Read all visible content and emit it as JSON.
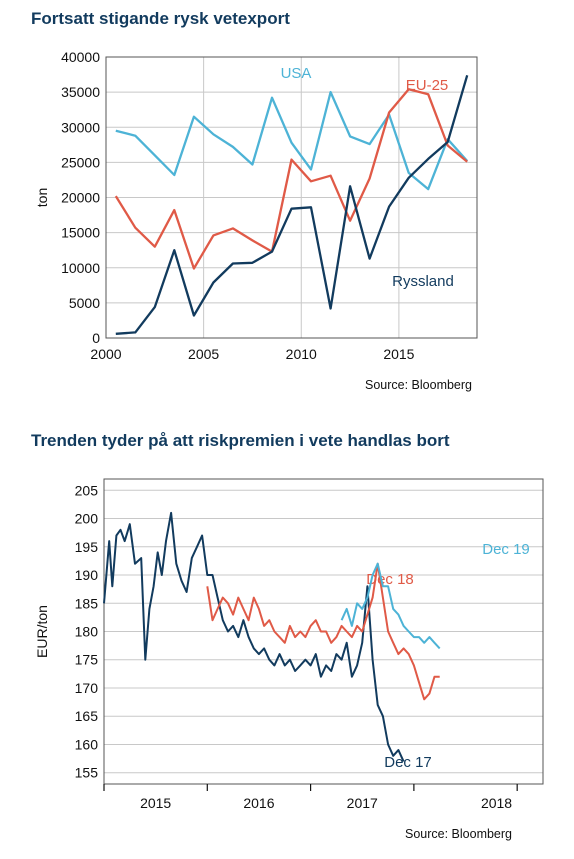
{
  "chart1": {
    "title": "Fortsatt stigande rysk vetexport",
    "source": "Source: Bloomberg",
    "chart_data": {
      "type": "line",
      "ylabel": "ton",
      "xlabel": "",
      "xlim": [
        2000,
        2019
      ],
      "ylim": [
        0,
        40000
      ],
      "xticks": [
        2000,
        2005,
        2010,
        2015
      ],
      "yticks": [
        0,
        5000,
        10000,
        15000,
        20000,
        25000,
        30000,
        35000,
        40000
      ],
      "grid": true,
      "series": [
        {
          "name": "USA",
          "color": "#4db3d6",
          "x": [
            2000.5,
            2001.5,
            2002.5,
            2003.5,
            2004.5,
            2005.5,
            2006.5,
            2007.5,
            2008.5,
            2009.5,
            2010.5,
            2011.5,
            2012.5,
            2013.5,
            2014.5,
            2015.5,
            2016.5,
            2017.5,
            2018.5
          ],
          "y": [
            29500,
            28800,
            26000,
            23200,
            31500,
            29000,
            27200,
            24700,
            34200,
            27800,
            24000,
            35000,
            28700,
            27600,
            31800,
            23500,
            21200,
            28300,
            25200
          ]
        },
        {
          "name": "EU-25",
          "color": "#e05a47",
          "x": [
            2000.5,
            2001.5,
            2002.5,
            2003.5,
            2004.5,
            2005.5,
            2006.5,
            2007.5,
            2008.5,
            2009.5,
            2010.5,
            2011.5,
            2012.5,
            2013.5,
            2014.5,
            2015.5,
            2016.5,
            2017.5,
            2018.5
          ],
          "y": [
            20200,
            15700,
            13000,
            18200,
            9900,
            14600,
            15600,
            13900,
            12300,
            25400,
            22300,
            23100,
            16700,
            22700,
            32100,
            35400,
            34700,
            27400,
            25100
          ]
        },
        {
          "name": "Ryssland",
          "color": "#123b5e",
          "x": [
            2000.5,
            2001.5,
            2002.5,
            2003.5,
            2004.5,
            2005.5,
            2006.5,
            2007.5,
            2008.5,
            2009.5,
            2010.5,
            2011.5,
            2012.5,
            2013.5,
            2014.5,
            2015.5,
            2016.5,
            2017.5,
            2018.5
          ],
          "y": [
            600,
            800,
            4400,
            12500,
            3200,
            7900,
            10600,
            10700,
            12300,
            18400,
            18600,
            4200,
            21600,
            11300,
            18700,
            22800,
            25500,
            27900,
            37400
          ]
        }
      ]
    }
  },
  "chart2": {
    "title": "Trenden tyder på att riskpremien i vete handlas bort",
    "source": "Source: Bloomberg",
    "chart_data": {
      "type": "line",
      "ylabel": "EUR/ton",
      "xlabel": "",
      "xlim": [
        2014.0,
        2018.25
      ],
      "ylim": [
        153,
        207
      ],
      "yticks": [
        155,
        160,
        165,
        170,
        175,
        180,
        185,
        190,
        195,
        200,
        205
      ],
      "xticklabels": [
        {
          "label": "2015",
          "x": 2014.5
        },
        {
          "label": "2016",
          "x": 2015.5
        },
        {
          "label": "2017",
          "x": 2016.5
        },
        {
          "label": "2018",
          "x": 2017.8
        }
      ],
      "grid": true,
      "series": [
        {
          "name": "Dec 17",
          "color": "#123b5e",
          "x": [
            2014.0,
            2014.05,
            2014.08,
            2014.12,
            2014.16,
            2014.2,
            2014.25,
            2014.3,
            2014.36,
            2014.4,
            2014.44,
            2014.48,
            2014.52,
            2014.56,
            2014.6,
            2014.65,
            2014.7,
            2014.75,
            2014.8,
            2014.85,
            2014.9,
            2014.95,
            2015.0,
            2015.05,
            2015.1,
            2015.15,
            2015.2,
            2015.25,
            2015.3,
            2015.35,
            2015.4,
            2015.45,
            2015.5,
            2015.55,
            2015.6,
            2015.65,
            2015.7,
            2015.75,
            2015.8,
            2015.85,
            2015.9,
            2015.95,
            2016.0,
            2016.05,
            2016.1,
            2016.15,
            2016.2,
            2016.25,
            2016.3,
            2016.35,
            2016.4,
            2016.45,
            2016.5,
            2016.55,
            2016.6,
            2016.65,
            2016.7,
            2016.75,
            2016.8,
            2016.85,
            2016.9
          ],
          "y": [
            185,
            196,
            188,
            197,
            198,
            196,
            199,
            192,
            193,
            175,
            184,
            188,
            194,
            190,
            196,
            201,
            192,
            189,
            187,
            193,
            195,
            197,
            190,
            190,
            186,
            182,
            180,
            181,
            179,
            182,
            179,
            177,
            176,
            177,
            175,
            174,
            176,
            174,
            175,
            173,
            174,
            175,
            174,
            176,
            172,
            174,
            173,
            176,
            175,
            178,
            172,
            174,
            178,
            188,
            175,
            167,
            165,
            160,
            158,
            159,
            157
          ]
        },
        {
          "name": "Dec 18",
          "color": "#e05a47",
          "x": [
            2015.0,
            2015.05,
            2015.1,
            2015.15,
            2015.2,
            2015.25,
            2015.3,
            2015.35,
            2015.4,
            2015.45,
            2015.5,
            2015.55,
            2015.6,
            2015.65,
            2015.7,
            2015.75,
            2015.8,
            2015.85,
            2015.9,
            2015.95,
            2016.0,
            2016.05,
            2016.1,
            2016.15,
            2016.2,
            2016.25,
            2016.3,
            2016.35,
            2016.4,
            2016.45,
            2016.5,
            2016.55,
            2016.6,
            2016.65,
            2016.7,
            2016.75,
            2016.8,
            2016.85,
            2016.9,
            2016.95,
            2017.0,
            2017.05,
            2017.1,
            2017.15,
            2017.2,
            2017.25
          ],
          "y": [
            188,
            182,
            184,
            186,
            185,
            183,
            186,
            184,
            182,
            186,
            184,
            181,
            182,
            180,
            179,
            178,
            181,
            179,
            180,
            179,
            181,
            182,
            180,
            180,
            178,
            179,
            181,
            180,
            179,
            181,
            180,
            183,
            186,
            192,
            186,
            180,
            178,
            176,
            177,
            176,
            174,
            171,
            168,
            169,
            172,
            172
          ]
        },
        {
          "name": "Dec 19",
          "color": "#4db3d6",
          "x": [
            2016.3,
            2016.35,
            2016.4,
            2016.45,
            2016.5,
            2016.55,
            2016.6,
            2016.65,
            2016.7,
            2016.75,
            2016.8,
            2016.85,
            2016.9,
            2016.95,
            2017.0,
            2017.05,
            2017.1,
            2017.15,
            2017.2,
            2017.25
          ],
          "y": [
            182,
            184,
            181,
            185,
            184,
            186,
            190,
            192,
            188,
            188,
            184,
            183,
            181,
            180,
            179,
            179,
            178,
            179,
            178,
            177
          ]
        }
      ]
    }
  }
}
